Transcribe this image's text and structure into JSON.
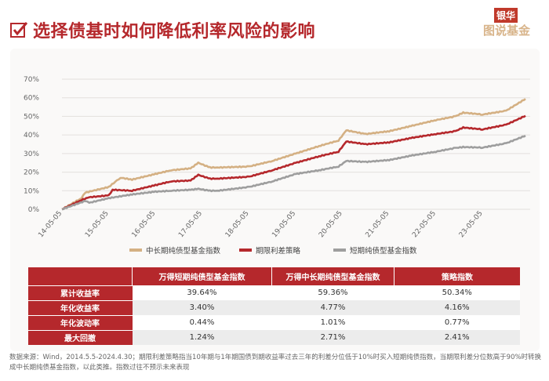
{
  "header": {
    "title": "选择债基时如何降低利率风险的影响",
    "logo_text": "银华图说基金",
    "icon": "checkbox-checked-icon"
  },
  "chart_data": {
    "type": "line",
    "title": "",
    "xlabel": "",
    "ylabel": "",
    "ylim": [
      0,
      70
    ],
    "yticks": [
      "0%",
      "10%",
      "20%",
      "30%",
      "40%",
      "50%",
      "60%",
      "70%"
    ],
    "xticks": [
      "14-05-05",
      "15-05-05",
      "16-05-05",
      "17-05-05",
      "18-05-05",
      "19-05-05",
      "20-05-05",
      "21-05-05",
      "22-05-05",
      "23-05-05"
    ],
    "grid": "horizontal",
    "legend": "bottom",
    "series": [
      {
        "name": "中长期纯债型基金指数",
        "color": "#d4b083",
        "x": [
          "2014-05",
          "2014-10",
          "2014-11",
          "2015-05",
          "2015-08",
          "2015-11",
          "2016-05",
          "2016-09",
          "2017-02",
          "2017-04",
          "2017-07",
          "2017-09",
          "2018-05",
          "2018-11",
          "2019-05",
          "2019-11",
          "2020-04",
          "2020-06",
          "2020-11",
          "2021-05",
          "2021-11",
          "2022-05",
          "2022-10",
          "2022-12",
          "2023-05",
          "2023-11",
          "2024-04"
        ],
        "y": [
          0,
          6,
          9,
          12,
          17,
          16,
          19,
          21,
          22,
          25,
          22.5,
          22.5,
          23,
          26,
          30,
          34,
          37,
          42.5,
          40.5,
          42,
          45,
          48,
          50,
          52,
          51,
          53,
          59.4
        ]
      },
      {
        "name": "期限利差策略",
        "color": "#b5282c",
        "x": [
          "2014-05",
          "2014-10",
          "2014-12",
          "2015-05",
          "2015-06",
          "2015-11",
          "2016-05",
          "2016-09",
          "2017-02",
          "2017-04",
          "2017-07",
          "2017-09",
          "2018-05",
          "2018-11",
          "2019-05",
          "2019-11",
          "2020-04",
          "2020-06",
          "2020-11",
          "2021-05",
          "2021-11",
          "2022-05",
          "2022-10",
          "2022-12",
          "2023-05",
          "2023-11",
          "2024-04"
        ],
        "y": [
          0,
          5,
          6.5,
          7.5,
          10.5,
          10,
          13,
          15,
          15.5,
          18.5,
          16.5,
          16.5,
          17.5,
          21,
          25,
          28.5,
          31,
          36.5,
          35,
          36,
          38.5,
          40.5,
          42,
          44,
          43,
          45.5,
          50.3
        ]
      },
      {
        "name": "短期纯债型基金指数",
        "color": "#9e9e9e",
        "x": [
          "2014-05",
          "2014-11",
          "2014-12",
          "2015-05",
          "2015-11",
          "2016-05",
          "2016-09",
          "2017-02",
          "2017-04",
          "2017-07",
          "2017-09",
          "2018-05",
          "2018-11",
          "2019-05",
          "2019-11",
          "2020-04",
          "2020-06",
          "2020-11",
          "2021-05",
          "2021-11",
          "2022-05",
          "2022-10",
          "2022-12",
          "2023-05",
          "2023-11",
          "2024-04"
        ],
        "y": [
          0,
          4.5,
          3.5,
          6,
          8,
          9.5,
          10,
          10.5,
          11,
          10,
          10,
          12,
          15,
          19,
          21,
          23,
          26,
          25.5,
          26.5,
          29,
          31,
          33,
          33.5,
          33.2,
          35.5,
          39.6
        ]
      }
    ]
  },
  "table": {
    "headers": [
      "",
      "万得短期纯债型基金指数",
      "万得中长期纯债型基金指数",
      "策略指数"
    ],
    "rows": [
      [
        "累计收益率",
        "39.64%",
        "59.36%",
        "50.34%"
      ],
      [
        "年化收益率",
        "3.40%",
        "4.77%",
        "4.16%"
      ],
      [
        "年化波动率",
        "0.44%",
        "1.01%",
        "0.77%"
      ],
      [
        "最大回撤",
        "1.24%",
        "2.71%",
        "2.41%"
      ]
    ]
  },
  "footnote": "数据来源：Wind，2014.5.5-2024.4.30；期限利差策略指当10年期与1年期国债到期收益率过去三年的利差分位低于10%时买入短期纯债指数，当期限利差分位数高于90%时转换成中长期纯债基金指数，以此类推。指数过往不预示未来表现"
}
